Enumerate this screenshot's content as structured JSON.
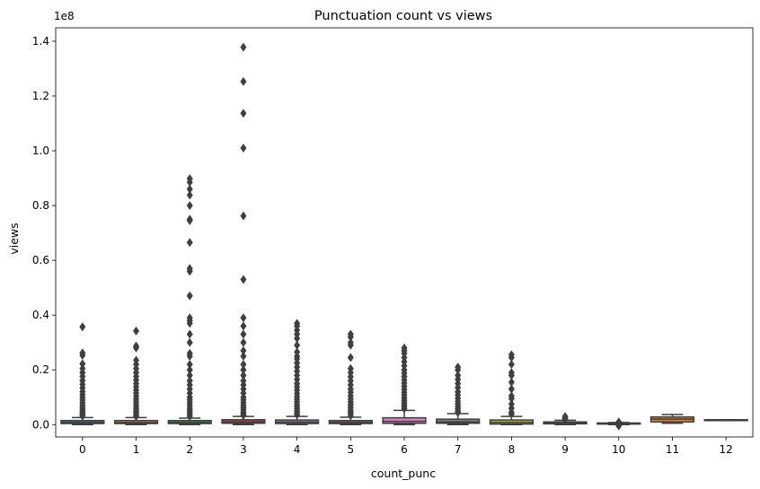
{
  "chart_data": {
    "type": "box",
    "title": "Punctuation count vs views",
    "xlabel": "count_punc",
    "ylabel": "views",
    "y_offset_label": "1e8",
    "y_multiplier": 100000000,
    "ylim": [
      -0.045,
      1.449
    ],
    "yticks": [
      "0.0",
      "0.2",
      "0.4",
      "0.6",
      "0.8",
      "1.0",
      "1.2",
      "1.4"
    ],
    "categories": [
      "0",
      "1",
      "2",
      "3",
      "4",
      "5",
      "6",
      "7",
      "8",
      "9",
      "10",
      "11",
      "12"
    ],
    "colors": [
      "#3274a1",
      "#e1812c",
      "#3a923a",
      "#c03d3e",
      "#9372b2",
      "#845b53",
      "#d684bd",
      "#7f7f7f",
      "#a9aa35",
      "#2eb0c5",
      "#3274a1",
      "#e1812c",
      "#3a923a"
    ],
    "boxes": [
      {
        "category": "0",
        "q1": 0.004,
        "median": 0.008,
        "q3": 0.015,
        "whisker_low": 0.0,
        "whisker_high": 0.026,
        "outliers": [
          0.357,
          0.262,
          0.253,
          0.222,
          0.205,
          0.19,
          0.176,
          0.161,
          0.147,
          0.134,
          0.121,
          0.11,
          0.1,
          0.09,
          0.08,
          0.07,
          0.062,
          0.055,
          0.048,
          0.042,
          0.036,
          0.031
        ]
      },
      {
        "category": "1",
        "q1": 0.004,
        "median": 0.008,
        "q3": 0.015,
        "whisker_low": 0.0,
        "whisker_high": 0.026,
        "outliers": [
          0.342,
          0.287,
          0.28,
          0.235,
          0.22,
          0.205,
          0.19,
          0.176,
          0.163,
          0.15,
          0.138,
          0.126,
          0.115,
          0.104,
          0.094,
          0.084,
          0.075,
          0.066,
          0.058,
          0.05,
          0.043,
          0.036,
          0.03
        ]
      },
      {
        "category": "2",
        "q1": 0.004,
        "median": 0.008,
        "q3": 0.015,
        "whisker_low": 0.0,
        "whisker_high": 0.024,
        "outliers": [
          0.898,
          0.885,
          0.86,
          0.838,
          0.8,
          0.75,
          0.745,
          0.665,
          0.57,
          0.56,
          0.47,
          0.39,
          0.38,
          0.37,
          0.33,
          0.3,
          0.26,
          0.25,
          0.22,
          0.2,
          0.18,
          0.16,
          0.145,
          0.13,
          0.115,
          0.1,
          0.09,
          0.08,
          0.07,
          0.06,
          0.052,
          0.044,
          0.037,
          0.03
        ]
      },
      {
        "category": "3",
        "q1": 0.005,
        "median": 0.01,
        "q3": 0.018,
        "whisker_low": 0.0,
        "whisker_high": 0.03,
        "outliers": [
          1.378,
          1.253,
          1.137,
          1.01,
          0.762,
          0.53,
          0.39,
          0.36,
          0.33,
          0.3,
          0.27,
          0.25,
          0.22,
          0.2,
          0.18,
          0.16,
          0.145,
          0.13,
          0.115,
          0.1,
          0.09,
          0.08,
          0.07,
          0.062,
          0.054,
          0.046,
          0.04,
          0.034
        ]
      },
      {
        "category": "4",
        "q1": 0.004,
        "median": 0.009,
        "q3": 0.017,
        "whisker_low": 0.0,
        "whisker_high": 0.03,
        "outliers": [
          0.37,
          0.36,
          0.345,
          0.33,
          0.315,
          0.29,
          0.265,
          0.25,
          0.24,
          0.225,
          0.21,
          0.195,
          0.18,
          0.165,
          0.15,
          0.138,
          0.126,
          0.114,
          0.103,
          0.093,
          0.083,
          0.074,
          0.066,
          0.058,
          0.05,
          0.043,
          0.036
        ]
      },
      {
        "category": "5",
        "q1": 0.004,
        "median": 0.008,
        "q3": 0.015,
        "whisker_low": 0.0,
        "whisker_high": 0.027,
        "outliers": [
          0.33,
          0.32,
          0.3,
          0.29,
          0.245,
          0.205,
          0.19,
          0.175,
          0.16,
          0.145,
          0.13,
          0.118,
          0.105,
          0.094,
          0.083,
          0.073,
          0.064,
          0.055,
          0.047,
          0.04,
          0.033
        ]
      },
      {
        "category": "6",
        "q1": 0.005,
        "median": 0.012,
        "q3": 0.025,
        "whisker_low": 0.0,
        "whisker_high": 0.052,
        "outliers": [
          0.28,
          0.27,
          0.26,
          0.245,
          0.23,
          0.215,
          0.2,
          0.188,
          0.176,
          0.164,
          0.152,
          0.14,
          0.129,
          0.118,
          0.108,
          0.098,
          0.089,
          0.08,
          0.072,
          0.065,
          0.058
        ]
      },
      {
        "category": "7",
        "q1": 0.005,
        "median": 0.01,
        "q3": 0.02,
        "whisker_low": 0.0,
        "whisker_high": 0.04,
        "outliers": [
          0.21,
          0.2,
          0.18,
          0.165,
          0.15,
          0.135,
          0.12,
          0.108,
          0.096,
          0.085,
          0.075,
          0.066,
          0.058,
          0.05,
          0.044
        ]
      },
      {
        "category": "8",
        "q1": 0.002,
        "median": 0.008,
        "q3": 0.017,
        "whisker_low": 0.0,
        "whisker_high": 0.03,
        "outliers": [
          0.255,
          0.245,
          0.22,
          0.19,
          0.18,
          0.155,
          0.13,
          0.105,
          0.095,
          0.075,
          0.06,
          0.045,
          0.038
        ]
      },
      {
        "category": "9",
        "q1": 0.003,
        "median": 0.006,
        "q3": 0.01,
        "whisker_low": 0.0,
        "whisker_high": 0.016,
        "outliers": [
          0.03,
          0.025,
          0.02
        ]
      },
      {
        "category": "10",
        "q1": 0.002,
        "median": 0.004,
        "q3": 0.006,
        "whisker_low": 0.0,
        "whisker_high": 0.008,
        "outliers": [
          0.01,
          0.0,
          -0.005
        ]
      },
      {
        "category": "11",
        "q1": 0.01,
        "median": 0.02,
        "q3": 0.028,
        "whisker_low": 0.005,
        "whisker_high": 0.037,
        "outliers": []
      },
      {
        "category": "12",
        "q1": 0.016,
        "median": 0.017,
        "q3": 0.018,
        "whisker_low": 0.016,
        "whisker_high": 0.018,
        "outliers": []
      }
    ]
  }
}
